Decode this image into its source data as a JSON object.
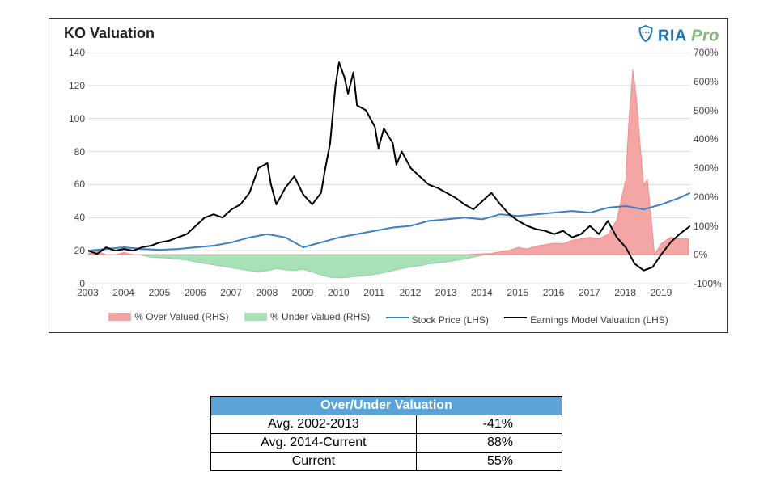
{
  "chart": {
    "title": "KO Valuation",
    "logo": {
      "ria": "RIA",
      "pro": "Pro",
      "badge_color": "#1f77b4"
    },
    "background_color": "#ffffff",
    "grid_color": "#d9d9d9",
    "plot_border_color": "#333333",
    "font": {
      "title_size": 18,
      "axis_size": 12,
      "legend_size": 12,
      "family": "Arial"
    },
    "x": {
      "categories": [
        "2003",
        "2004",
        "2005",
        "2006",
        "2007",
        "2008",
        "2009",
        "2010",
        "2011",
        "2012",
        "2013",
        "2014",
        "2015",
        "2016",
        "2017",
        "2018",
        "2019"
      ],
      "tick_color": "#444444"
    },
    "y_left": {
      "label": null,
      "min": 0,
      "max": 140,
      "step": 20,
      "ticks": [
        0,
        20,
        40,
        60,
        80,
        100,
        120,
        140
      ],
      "tick_color": "#444444"
    },
    "y_right": {
      "label": null,
      "min": -100,
      "max": 700,
      "step": 100,
      "ticks": [
        -100,
        0,
        100,
        200,
        300,
        400,
        500,
        600,
        700
      ],
      "suffix": "%",
      "tick_color": "#444444"
    },
    "series": {
      "over_valued_rhs": {
        "type": "area",
        "axis": "right",
        "color_fill": "#f4a6a6",
        "color_line": "#f08c8c",
        "legend": "% Over Valued (RHS)",
        "data": {
          "2003.0": 5,
          "2003.25": 12,
          "2003.5": 0,
          "2003.75": 0,
          "2004.0": 8,
          "2004.25": 0,
          "2004.5": 0,
          "2004.75": 0,
          "2013.5": 0,
          "2014.25": 5,
          "2014.5": 10,
          "2014.75": 15,
          "2015.0": 25,
          "2015.25": 20,
          "2015.5": 30,
          "2015.75": 35,
          "2016.0": 40,
          "2016.25": 38,
          "2016.5": 50,
          "2016.75": 55,
          "2017.0": 60,
          "2017.25": 55,
          "2017.5": 70,
          "2017.75": 120,
          "2018.0": 260,
          "2018.1": 490,
          "2018.2": 640,
          "2018.3": 540,
          "2018.4": 380,
          "2018.5": 240,
          "2018.6": 260,
          "2018.7": 140,
          "2018.8": 0,
          "2019.0": 40,
          "2019.25": 60,
          "2019.5": 55,
          "2019.75": 55
        }
      },
      "under_valued_rhs": {
        "type": "area",
        "axis": "right",
        "color_fill": "#a8e0b7",
        "color_line": "#8fd3a2",
        "legend": "% Under Valued (RHS)",
        "data": {
          "2004.5": -2,
          "2004.75": -8,
          "2005.0": -10,
          "2005.25": -12,
          "2005.5": -15,
          "2005.75": -18,
          "2006.0": -25,
          "2006.25": -30,
          "2006.5": -35,
          "2006.75": -40,
          "2007.0": -45,
          "2007.25": -50,
          "2007.5": -55,
          "2007.75": -58,
          "2008.0": -55,
          "2008.25": -48,
          "2008.5": -52,
          "2008.75": -55,
          "2009.0": -50,
          "2009.25": -60,
          "2009.5": -70,
          "2009.75": -78,
          "2010.0": -80,
          "2010.25": -78,
          "2010.5": -75,
          "2010.75": -72,
          "2011.0": -68,
          "2011.25": -62,
          "2011.5": -55,
          "2011.75": -48,
          "2012.0": -42,
          "2012.25": -38,
          "2012.5": -32,
          "2012.75": -28,
          "2013.0": -25,
          "2013.25": -20,
          "2013.5": -15,
          "2013.75": -8,
          "2014.0": -2
        }
      },
      "stock_price_lhs": {
        "type": "line",
        "axis": "left",
        "color": "#3b7fc4",
        "width": 2,
        "legend": "Stock Price (LHS)",
        "data": {
          "2003.0": 20,
          "2003.5": 21,
          "2004.0": 22,
          "2004.5": 21,
          "2005.0": 20.5,
          "2005.5": 21,
          "2006.0": 22,
          "2006.5": 23,
          "2007.0": 25,
          "2007.5": 28,
          "2008.0": 30,
          "2008.5": 28,
          "2009.0": 22,
          "2009.5": 25,
          "2010.0": 28,
          "2010.5": 30,
          "2011.0": 32,
          "2011.5": 34,
          "2012.0": 35,
          "2012.5": 38,
          "2013.0": 39,
          "2013.5": 40,
          "2014.0": 39,
          "2014.5": 42,
          "2015.0": 41,
          "2015.5": 42,
          "2016.0": 43,
          "2016.5": 44,
          "2017.0": 43,
          "2017.5": 46,
          "2018.0": 47,
          "2018.5": 45,
          "2019.0": 48,
          "2019.5": 52,
          "2019.8": 55
        }
      },
      "earnings_model_lhs": {
        "type": "line",
        "axis": "left",
        "color": "#000000",
        "width": 2,
        "legend": "Earnings Model Valuation (LHS)",
        "data": {
          "2003.0": 20,
          "2003.25": 18,
          "2003.5": 22,
          "2003.75": 20,
          "2004.0": 21,
          "2004.25": 20,
          "2004.5": 22,
          "2004.75": 23,
          "2005.0": 25,
          "2005.25": 26,
          "2005.5": 28,
          "2005.75": 30,
          "2006.0": 35,
          "2006.25": 40,
          "2006.5": 42,
          "2006.75": 40,
          "2007.0": 45,
          "2007.25": 48,
          "2007.5": 55,
          "2007.75": 70,
          "2008.0": 73,
          "2008.1": 60,
          "2008.25": 48,
          "2008.5": 58,
          "2008.75": 65,
          "2009.0": 54,
          "2009.25": 48,
          "2009.5": 55,
          "2009.6": 68,
          "2009.75": 85,
          "2009.9": 120,
          "2010.0": 134,
          "2010.15": 125,
          "2010.25": 115,
          "2010.4": 128,
          "2010.5": 108,
          "2010.75": 105,
          "2011.0": 95,
          "2011.1": 82,
          "2011.25": 94,
          "2011.5": 85,
          "2011.6": 72,
          "2011.75": 80,
          "2012.0": 70,
          "2012.25": 65,
          "2012.5": 60,
          "2012.75": 58,
          "2013.0": 55,
          "2013.25": 52,
          "2013.5": 48,
          "2013.75": 45,
          "2014.0": 50,
          "2014.25": 55,
          "2014.5": 48,
          "2014.75": 42,
          "2015.0": 38,
          "2015.25": 35,
          "2015.5": 33,
          "2015.75": 32,
          "2016.0": 30,
          "2016.25": 32,
          "2016.5": 28,
          "2016.75": 30,
          "2017.0": 35,
          "2017.25": 30,
          "2017.5": 38,
          "2017.75": 28,
          "2018.0": 22,
          "2018.25": 12,
          "2018.5": 8,
          "2018.75": 10,
          "2019.0": 18,
          "2019.25": 25,
          "2019.5": 30,
          "2019.8": 35
        }
      }
    }
  },
  "valuation_table": {
    "header": "Over/Under Valuation",
    "header_bg": "#5ba2d7",
    "header_fg": "#ffffff",
    "border_color": "#000000",
    "rows": [
      {
        "label": "Avg. 2002-2013",
        "value": "-41%"
      },
      {
        "label": "Avg. 2014-Current",
        "value": "88%"
      },
      {
        "label": "Current",
        "value": "55%"
      }
    ]
  }
}
